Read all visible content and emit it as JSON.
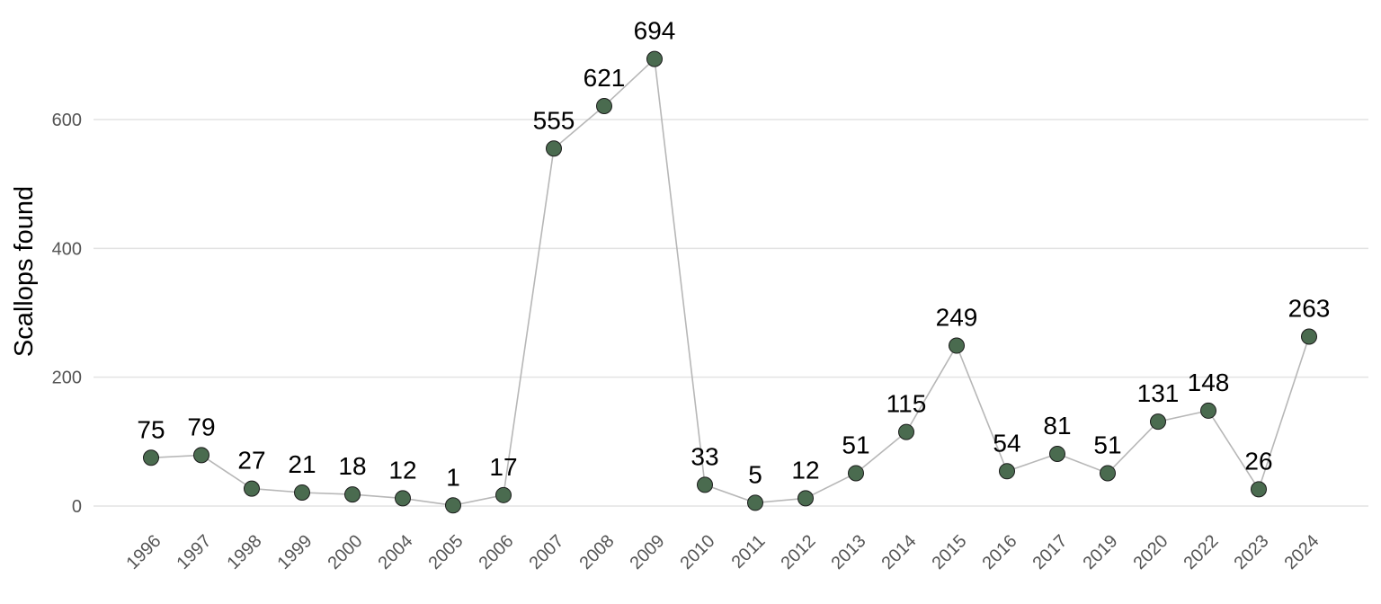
{
  "chart_data": {
    "type": "line",
    "title": "",
    "xlabel": "",
    "ylabel": "Scallops found",
    "ylim": [
      -75,
      740
    ],
    "yticks": [
      0,
      200,
      400,
      600
    ],
    "grid": true,
    "legend": "none",
    "colors": {
      "point_fill": "#4a6b4f",
      "point_stroke": "#1b1b1b",
      "line": "#b7b7b7",
      "grid": "#e3e3e3",
      "tick_text": "#555555",
      "label_text": "#000000"
    },
    "categories": [
      "1996",
      "1997",
      "1998",
      "1999",
      "2000",
      "2004",
      "2005",
      "2006",
      "2007",
      "2008",
      "2009",
      "2010",
      "2011",
      "2012",
      "2013",
      "2014",
      "2015",
      "2016",
      "2017",
      "2019",
      "2020",
      "2022",
      "2023",
      "2024"
    ],
    "series": [
      {
        "values": [
          75,
          79,
          27,
          21,
          18,
          12,
          1,
          17,
          555,
          621,
          694,
          33,
          5,
          12,
          51,
          115,
          249,
          54,
          81,
          51,
          131,
          148,
          26,
          263
        ]
      }
    ]
  }
}
